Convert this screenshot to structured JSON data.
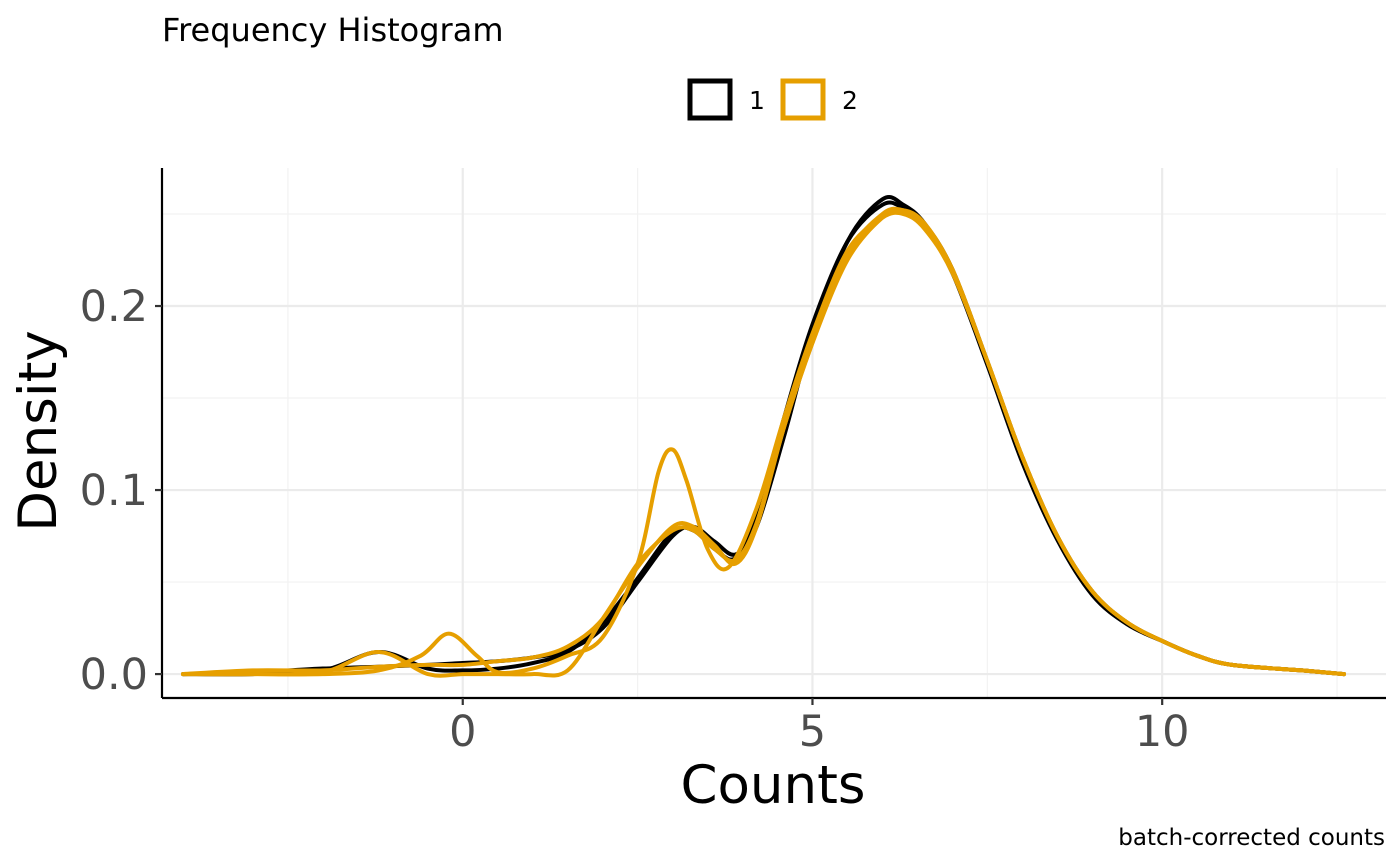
{
  "chart_data": {
    "type": "line",
    "title": "Frequency Histogram",
    "xlabel": "Counts",
    "ylabel": "Density",
    "caption": "batch-corrected counts",
    "xlim": [
      -4.3,
      13.2
    ],
    "ylim": [
      -0.013,
      0.275
    ],
    "x_ticks": [
      0,
      5,
      10
    ],
    "x_tick_labels": [
      "0",
      "5",
      "10"
    ],
    "y_ticks": [
      0.0,
      0.1,
      0.2
    ],
    "y_tick_labels": [
      "0.0",
      "0.1",
      "0.2"
    ],
    "grid": "major and minor",
    "legend": {
      "position": "top",
      "entries": [
        {
          "label": "1",
          "color": "#000000"
        },
        {
          "label": "2",
          "color": "#E69F00"
        }
      ]
    },
    "series": [
      {
        "group": "1",
        "color": "#000000",
        "x": [
          -4.0,
          -3.0,
          -2.0,
          -1.2,
          -0.5,
          0.0,
          0.5,
          1.0,
          1.5,
          2.0,
          2.5,
          3.0,
          3.3,
          3.6,
          3.9,
          4.2,
          4.6,
          5.0,
          5.5,
          6.0,
          6.3,
          6.6,
          7.0,
          7.5,
          8.0,
          8.5,
          9.0,
          9.5,
          10.0,
          10.5,
          11.0,
          12.0,
          12.6
        ],
        "y": [
          0.0,
          0.001,
          0.003,
          0.004,
          0.005,
          0.006,
          0.007,
          0.009,
          0.013,
          0.025,
          0.05,
          0.075,
          0.08,
          0.072,
          0.065,
          0.08,
          0.13,
          0.185,
          0.235,
          0.258,
          0.255,
          0.245,
          0.22,
          0.17,
          0.118,
          0.075,
          0.045,
          0.028,
          0.018,
          0.01,
          0.005,
          0.002,
          0.0
        ]
      },
      {
        "group": "1",
        "color": "#000000",
        "x": [
          -4.0,
          -3.0,
          -2.0,
          -1.2,
          -0.5,
          0.0,
          0.5,
          1.0,
          1.5,
          2.0,
          2.5,
          3.0,
          3.3,
          3.6,
          3.9,
          4.2,
          4.6,
          5.0,
          5.5,
          6.0,
          6.3,
          6.6,
          7.0,
          7.5,
          8.0,
          8.5,
          9.0,
          9.5,
          10.0,
          10.5,
          11.0,
          12.0,
          12.6
        ],
        "y": [
          0.0,
          0.0,
          0.002,
          0.012,
          0.003,
          0.002,
          0.003,
          0.006,
          0.012,
          0.028,
          0.052,
          0.077,
          0.078,
          0.068,
          0.063,
          0.085,
          0.14,
          0.19,
          0.235,
          0.255,
          0.253,
          0.243,
          0.218,
          0.168,
          0.115,
          0.073,
          0.043,
          0.027,
          0.018,
          0.01,
          0.005,
          0.002,
          0.0
        ]
      },
      {
        "group": "2",
        "color": "#E69F00",
        "x": [
          -4.0,
          -3.0,
          -2.0,
          -1.2,
          -0.5,
          0.0,
          0.5,
          1.0,
          1.5,
          2.0,
          2.5,
          3.0,
          3.3,
          3.6,
          3.9,
          4.2,
          4.6,
          5.0,
          5.5,
          6.0,
          6.3,
          6.6,
          7.0,
          7.5,
          8.0,
          8.5,
          9.0,
          9.5,
          10.0,
          10.5,
          11.0,
          12.0,
          12.6
        ],
        "y": [
          0.0,
          0.0,
          0.001,
          0.012,
          0.0,
          0.0,
          0.0,
          0.0,
          0.002,
          0.03,
          0.058,
          0.08,
          0.08,
          0.07,
          0.06,
          0.08,
          0.135,
          0.18,
          0.225,
          0.248,
          0.252,
          0.245,
          0.22,
          0.17,
          0.118,
          0.075,
          0.045,
          0.028,
          0.018,
          0.01,
          0.005,
          0.002,
          0.0
        ]
      },
      {
        "group": "2",
        "color": "#E69F00",
        "x": [
          -4.0,
          -3.0,
          -2.0,
          -1.2,
          -0.6,
          -0.2,
          0.2,
          0.5,
          1.0,
          1.5,
          2.0,
          2.5,
          2.8,
          3.0,
          3.2,
          3.5,
          3.8,
          4.2,
          4.6,
          5.0,
          5.5,
          6.0,
          6.3,
          6.6,
          7.0,
          7.5,
          8.0,
          8.5,
          9.0,
          9.5,
          10.0,
          10.5,
          11.0,
          12.0,
          12.6
        ],
        "y": [
          0.0,
          0.0,
          0.0,
          0.002,
          0.01,
          0.022,
          0.01,
          0.001,
          0.003,
          0.01,
          0.02,
          0.06,
          0.11,
          0.122,
          0.105,
          0.068,
          0.058,
          0.09,
          0.14,
          0.185,
          0.23,
          0.248,
          0.25,
          0.242,
          0.218,
          0.17,
          0.118,
          0.075,
          0.045,
          0.028,
          0.018,
          0.01,
          0.005,
          0.002,
          0.0
        ]
      },
      {
        "group": "2",
        "color": "#E69F00",
        "x": [
          -4.0,
          -3.0,
          -2.0,
          -1.2,
          -0.5,
          0.0,
          0.5,
          1.0,
          1.5,
          2.0,
          2.5,
          3.0,
          3.3,
          3.6,
          3.9,
          4.2,
          4.6,
          5.0,
          5.5,
          6.0,
          6.3,
          6.6,
          7.0,
          7.5,
          8.0,
          8.5,
          9.0,
          9.5,
          10.0,
          10.5,
          11.0,
          12.0,
          12.6
        ],
        "y": [
          0.0,
          0.002,
          0.002,
          0.004,
          0.005,
          0.005,
          0.007,
          0.009,
          0.015,
          0.03,
          0.06,
          0.078,
          0.078,
          0.068,
          0.062,
          0.082,
          0.135,
          0.18,
          0.228,
          0.25,
          0.252,
          0.244,
          0.22,
          0.17,
          0.118,
          0.075,
          0.045,
          0.028,
          0.018,
          0.01,
          0.005,
          0.002,
          0.0
        ]
      }
    ]
  }
}
